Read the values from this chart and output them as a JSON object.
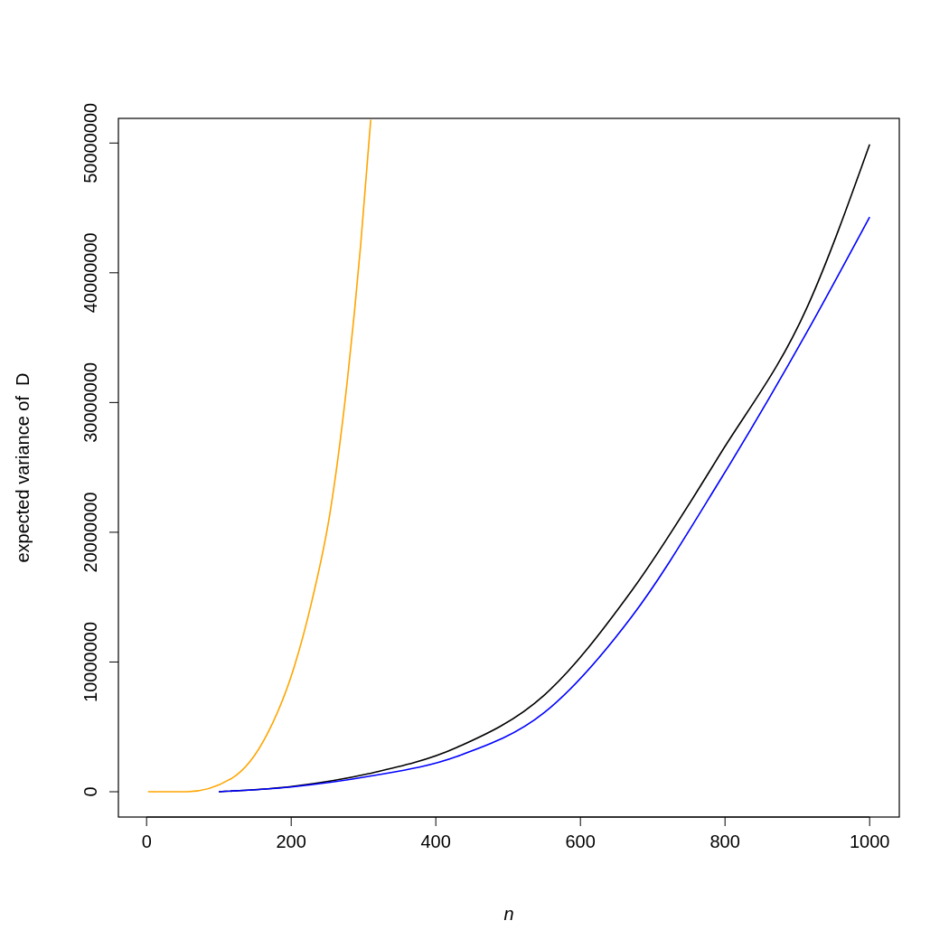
{
  "chart_data": {
    "type": "line",
    "xlabel": "n",
    "ylabel": "expected variance of  D",
    "xlim": [
      -39,
      1041
    ],
    "ylim": [
      -1950000,
      51900000
    ],
    "xticks": [
      0,
      200,
      400,
      600,
      800,
      1000
    ],
    "yticks": [
      0,
      10000000,
      20000000,
      30000000,
      40000000,
      50000000
    ],
    "grid": false,
    "marker": "none",
    "line_style": "solid",
    "series": [
      {
        "color": "#ffa500",
        "x": [
          2,
          56,
          118,
          167,
          204,
          229,
          254,
          278,
          296,
          310
        ],
        "values": [
          0,
          0,
          1040000,
          4460000,
          9600000,
          14800000,
          21600000,
          31900000,
          42100000,
          51800000
        ]
      },
      {
        "color": "#000000",
        "x": [
          100,
          200,
          307,
          429,
          550,
          671,
          793,
          914,
          1000
        ],
        "values": [
          0,
          400000,
          1390000,
          3410000,
          7450000,
          15500000,
          26000000,
          37400000,
          49900000
        ]
      },
      {
        "color": "#0000ff",
        "x": [
          100,
          200,
          307,
          429,
          550,
          671,
          793,
          914,
          1000
        ],
        "values": [
          0,
          370000,
          1180000,
          2720000,
          6100000,
          13500000,
          24000000,
          35500000,
          44300000
        ]
      }
    ]
  }
}
